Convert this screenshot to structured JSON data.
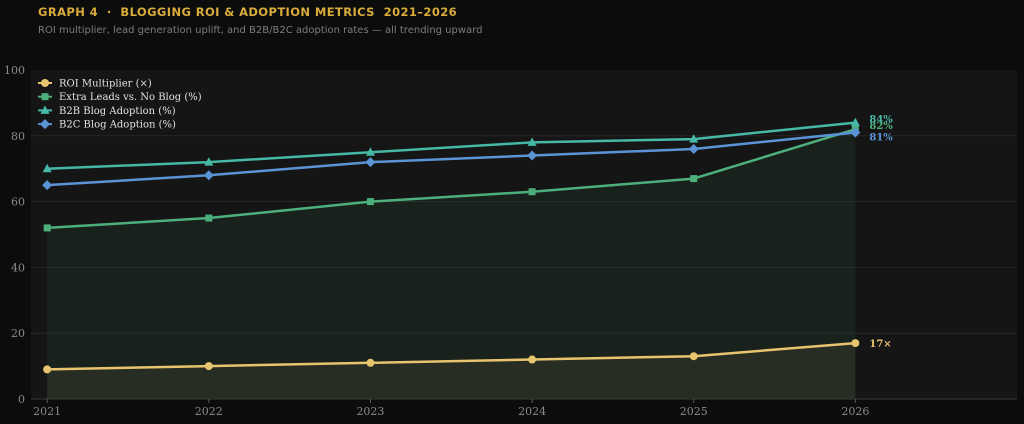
{
  "header": {
    "title": "GRAPH 4  ·  BLOGGING ROI & ADOPTION METRICS  2021–2026",
    "subtitle": "ROI multiplier, lead generation uplift, and B2B/B2C adoption rates — all trending upward"
  },
  "colors": {
    "background": "#0c0c0c",
    "plot_background": "#151515",
    "grid": "#262626",
    "roi": "#e8c46e",
    "leads": "#4daf7c",
    "b2b": "#45b8a6",
    "b2c": "#5b94d6"
  },
  "chart_data": {
    "type": "line",
    "title": "GRAPH 4  ·  BLOGGING ROI & ADOPTION METRICS  2021–2026",
    "subtitle": "ROI multiplier, lead generation uplift, and B2B/B2C adoption rates — all trending upward",
    "xlabel": "",
    "ylabel": "",
    "x": [
      2021,
      2022,
      2023,
      2024,
      2025,
      2026
    ],
    "xlim": [
      2020.9,
      2027
    ],
    "ylim": [
      0,
      100
    ],
    "yticks": [
      0,
      20,
      40,
      60,
      80,
      100
    ],
    "grid": true,
    "legend_position": "top-left",
    "series": [
      {
        "name": "ROI Multiplier (×)",
        "values": [
          9,
          10,
          11,
          12,
          13,
          17
        ],
        "color": "#e8c46e",
        "marker": "circle",
        "fill": true,
        "end_label": "17×"
      },
      {
        "name": "Extra Leads vs. No Blog (%)",
        "values": [
          52,
          55,
          60,
          63,
          67,
          82
        ],
        "color": "#4daf7c",
        "marker": "square",
        "fill": true,
        "end_label": "82%"
      },
      {
        "name": "B2B Blog Adoption (%)",
        "values": [
          70,
          72,
          75,
          78,
          79,
          84
        ],
        "color": "#45b8a6",
        "marker": "triangle",
        "fill": false,
        "end_label": "84%"
      },
      {
        "name": "B2C Blog Adoption (%)",
        "values": [
          65,
          68,
          72,
          74,
          76,
          81
        ],
        "color": "#5b94d6",
        "marker": "diamond",
        "fill": false,
        "end_label": "81%"
      }
    ]
  }
}
